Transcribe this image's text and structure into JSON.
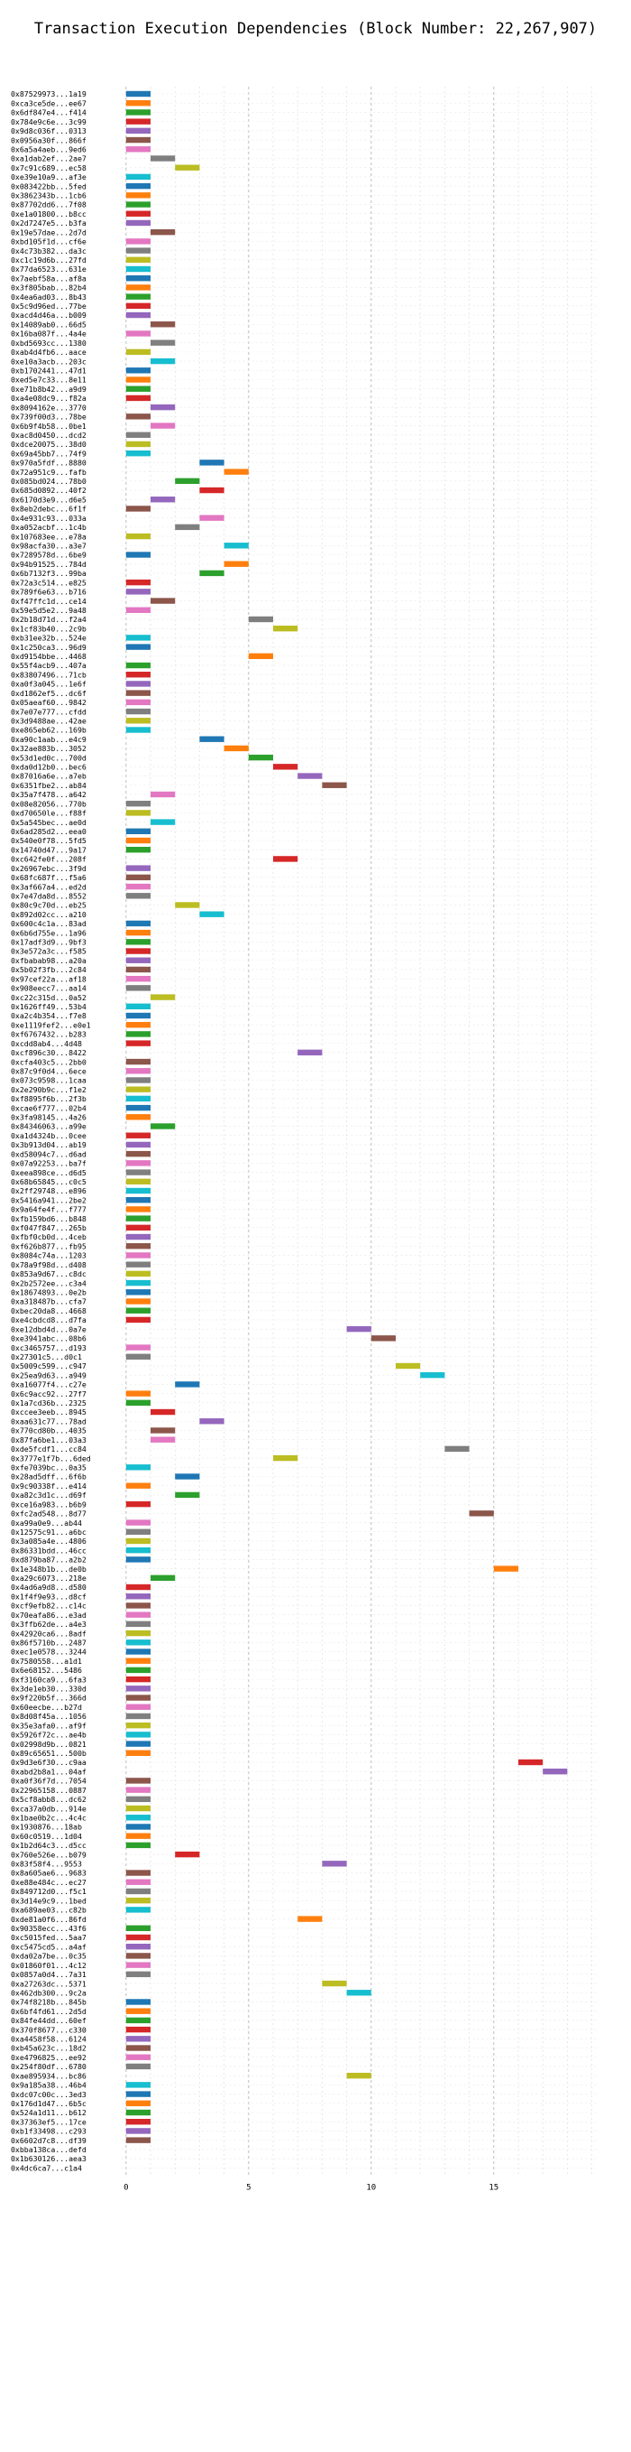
{
  "chart_data": {
    "type": "gantt",
    "title": "Transaction Execution Dependencies (Block Number: 22,267,907)",
    "xlabel": "",
    "ylabel": "",
    "xlim": [
      -4.7,
      19.2
    ],
    "xticks": [
      0,
      5,
      10,
      15
    ],
    "grid": true,
    "colors": [
      "#1f77b4",
      "#ff7f0e",
      "#2ca02c",
      "#d62728",
      "#9467bd",
      "#8c564b",
      "#e377c2",
      "#7f7f7f",
      "#bcbd22",
      "#17becf"
    ],
    "categories": [
      "0x87529973...1a19",
      "0xca3ce5de...ee67",
      "0x6df847e4...f414",
      "0x784e9c6e...3c99",
      "0x9d8c036f...0313",
      "0x0956a30f...866f",
      "0x6a5a4aeb...9ed6",
      "0xa1dab2ef...2ae7",
      "0x7c91c689...ec58",
      "0xe39e10a9...af3e",
      "0x083422bb...5fed",
      "0x3862343b...1cb6",
      "0x87702dd6...7f08",
      "0xe1a01800...b8cc",
      "0x2d7247e5...b3fa",
      "0x19e57dae...2d7d",
      "0xbd105f1d...cf6e",
      "0x4c73b382...da3c",
      "0xc1c19d6b...27fd",
      "0x77da6523...631e",
      "0x7aebf58a...af8a",
      "0x3f805bab...82b4",
      "0x4ea6ad03...8b43",
      "0x5c9d96ed...77be",
      "0xacd4d46a...b009",
      "0x14089ab0...66d5",
      "0x16ba087f...4a4e",
      "0xbd5693cc...1380",
      "0xab4d4fb6...aace",
      "0xe10a3acb...203c",
      "0xb1702441...47d1",
      "0xed5e7c33...8e11",
      "0xe71b8b42...a9d9",
      "0xa4e08dc9...f82a",
      "0x8094162e...3770",
      "0x739f00d3...78be",
      "0x6b9f4b58...0be1",
      "0xac8d0450...dcd2",
      "0xdce20075...38d0",
      "0x69a45bb7...74f9",
      "0x970a5fdf...8880",
      "0x72a951c9...fafb",
      "0x085bd024...78b0",
      "0x685d0892...40f2",
      "0x6170d3e9...d6e5",
      "0x8eb2debc...6f1f",
      "0x4e931c93...033a",
      "0xa052acbf...1c4b",
      "0x107683ee...e78a",
      "0x98acfa30...a3e7",
      "0x7289578d...6be9",
      "0x94b91525...784d",
      "0x6b7132f3...99ba",
      "0x72a3c514...e825",
      "0x789f6e63...b716",
      "0xf47ffc1d...ce14",
      "0x59e5d5e2...9a48",
      "0x2b18d71d...f2a4",
      "0x1cf83b40...2c9b",
      "0xb31ee32b...524e",
      "0x1c250ca3...96d9",
      "0xd9154bbe...4468",
      "0x55f4acb9...407a",
      "0x83807496...71cb",
      "0xa0f3a045...1e6f",
      "0xd1862ef5...dc6f",
      "0x05aeaf60...9842",
      "0x7e07e777...cfdd",
      "0x3d9488ae...42ae",
      "0xe865eb62...169b",
      "0xa90c1aab...e4c9",
      "0x32ae883b...3052",
      "0x53d1ed0c...700d",
      "0xda0d12b0...bec6",
      "0x87016a6e...a7eb",
      "0x6351fbe2...ab84",
      "0x35a7f478...a642",
      "0x08e82056...770b",
      "0xd70650le...f88f",
      "0x5a545bec...ae0d",
      "0x6ad285d2...eea0",
      "0x540e0f78...5fd5",
      "0x14740d47...9a17",
      "0xc642fe0f...208f",
      "0x26967ebc...3f9d",
      "0x68fc687f...f5a6",
      "0x3af667a4...ed2d",
      "0x7e47da8d...8552",
      "0x80c9c70d...eb25",
      "0x892d02cc...a210",
      "0x600c4c1a...83ad",
      "0x6b6d755e...1a96",
      "0x17adf3d9...9bf3",
      "0x3e572a3c...f585",
      "0xfbabab98...a20a",
      "0x5b02f3fb...2c84",
      "0x97cef22a...af18",
      "0x908eecc7...aa14",
      "0xc22c315d...0a52",
      "0x1626ff49...53b4",
      "0xa2c4b354...f7e8",
      "0xe1119fef2...e0e1",
      "0xf6767432...b283",
      "0xcdd8ab4...4d48",
      "0xcf896c30...8422",
      "0xcfa403c5...2bb0",
      "0x87c9f0d4...6ece",
      "0x073c9598...1caa",
      "0x2e290b9c...f1e2",
      "0xf8895f6b...2f3b",
      "0xcae6f777...02b4",
      "0x3fa98145...4a26",
      "0x84346063...a99e",
      "0xa1d4324b...0cee",
      "0x3b913d04...ab19",
      "0xd58094c7...d6ad",
      "0x07a92253...ba7f",
      "0xeea898ce...d6d5",
      "0x68b65845...c0c5",
      "0x2ff29748...e896",
      "0x5416a941...2be2",
      "0x9a64fe4f...f777",
      "0xfb159bd6...b848",
      "0xf047f847...265b",
      "0xfbf0cb0d...4ceb",
      "0xf626b877...fb95",
      "0x8084c74a...1203",
      "0x78a9f98d...d408",
      "0x853a9d67...c8dc",
      "0x2b2572ee...c3a4",
      "0x18674893...0e2b",
      "0xa318487b...cfa7",
      "0xbec20da8...4668",
      "0xe4cbdcd8...d7fa",
      "0xe12dbd4d...0a7e",
      "0xe3941abc...08b6",
      "0xc3465757...d193",
      "0x27301c5...d0c1",
      "0x5009c599...c947",
      "0x25ea9d63...a949",
      "0xa16077f4...c27e",
      "0x6c9acc92...27f7",
      "0x1a7cd36b...2325",
      "0xccee3eeb...8945",
      "0xaa631c77...78ad",
      "0x770cd80b...4035",
      "0x87fa6be1...03a3",
      "0xde5fcdf1...cc84",
      "0x3777e1f7b...6ded",
      "0xfe7039bc...0a35",
      "0x28ad5dff...6f6b",
      "0x9c90338f...e414",
      "0xa82c3d1c...d69f",
      "0xce16a983...b6b9",
      "0xfc2ad548...8d77",
      "0xa99a0e9...ab44",
      "0x12575c91...a6bc",
      "0x3a085a4e...4806",
      "0x86331bdd...46cc",
      "0xd879ba87...a2b2",
      "0x1e348b1b...de0b",
      "0xa29c6073...218e",
      "0x4ad6a9d8...d580",
      "0x1f4f9e93...d8cf",
      "0xcf9efb82...c14c",
      "0x70eafa86...e3ad",
      "0x3ffb62de...a4e3",
      "0x42920ca6...8adf",
      "0x86f5710b...2487",
      "0xec1e0578...3244",
      "0x7580558...a1d1",
      "0x6e68152...5486",
      "0xf3160ca9...6fa3",
      "0x3de1eb30...330d",
      "0x9f220b5f...366d",
      "0x60eecbe...b27d",
      "0x8d08f45a...1056",
      "0x35e3afa0...af9f",
      "0x5926f72c...ae4b",
      "0x02998d9b...0821",
      "0x89c65651...500b",
      "0x9d3e6f30...c9aa",
      "0xabd2b8a1...04af",
      "0xa0f36f7d...7054",
      "0x22965158...0887",
      "0x5cf8abb8...dc62",
      "0xca37a0db...914e",
      "0x1bae0b2c...4c4c",
      "0x1930876...18ab",
      "0x60c0519...1d04",
      "0x1b2d64c3...d5cc",
      "0x760e526e...b079",
      "0x83f58f4...9553",
      "0x8a605ae6...9683",
      "0xe88e484c...ec27",
      "0x849712d0...f5c1",
      "0x3d14e9c9...1bed",
      "0xa689ae03...c82b",
      "0xde81a0f6...86fd",
      "0x90358ecc...43f6",
      "0xc5015fed...5aa7",
      "0xc5475cd5...a4af",
      "0xda02a7be...0c35",
      "0x01860f01...4c12",
      "0x0857a0d4...7a31",
      "0xa27263dc...5371",
      "0x462db300...9c2a",
      "0x74f8218b...845b",
      "0x6bf4fd61...2d5d",
      "0x84fe44dd...60ef",
      "0x370f8677...c330",
      "0xa4458f58...6124",
      "0xb45a623c...18d2",
      "0xe4796825...ee92",
      "0x254f80df...6780",
      "0xae895934...bc86",
      "0x9a185a38...46b4",
      "0xdc07c00c...3ed3",
      "0x176d1d47...6b5c",
      "0x524a1d11...b612",
      "0x37363ef5...17ce",
      "0xb1f33498...c293",
      "0x6602d7c8...df39",
      "0xbba138ca...defd",
      "0x1b630126...aea3",
      "0x4dc6ca7...c1a4"
    ],
    "bars": [
      [
        0,
        1,
        0
      ],
      [
        0,
        1,
        1
      ],
      [
        0,
        1,
        2
      ],
      [
        0,
        1,
        3
      ],
      [
        0,
        1,
        4
      ],
      [
        0,
        1,
        5
      ],
      [
        0,
        1,
        6
      ],
      [
        1,
        1,
        7
      ],
      [
        2,
        1,
        8
      ],
      [
        0,
        1,
        9
      ],
      [
        0,
        1,
        0
      ],
      [
        0,
        1,
        1
      ],
      [
        0,
        1,
        2
      ],
      [
        0,
        1,
        3
      ],
      [
        0,
        1,
        4
      ],
      [
        1,
        1,
        5
      ],
      [
        0,
        1,
        6
      ],
      [
        0,
        1,
        7
      ],
      [
        0,
        1,
        8
      ],
      [
        0,
        1,
        9
      ],
      [
        0,
        1,
        0
      ],
      [
        0,
        1,
        1
      ],
      [
        0,
        1,
        2
      ],
      [
        0,
        1,
        3
      ],
      [
        0,
        1,
        4
      ],
      [
        1,
        1,
        5
      ],
      [
        0,
        1,
        6
      ],
      [
        1,
        1,
        7
      ],
      [
        0,
        1,
        8
      ],
      [
        1,
        1,
        9
      ],
      [
        0,
        1,
        0
      ],
      [
        0,
        1,
        1
      ],
      [
        0,
        1,
        2
      ],
      [
        0,
        1,
        3
      ],
      [
        1,
        1,
        4
      ],
      [
        0,
        1,
        5
      ],
      [
        1,
        1,
        6
      ],
      [
        0,
        1,
        7
      ],
      [
        0,
        1,
        8
      ],
      [
        0,
        1,
        9
      ],
      [
        3,
        1,
        0
      ],
      [
        4,
        1,
        1
      ],
      [
        2,
        1,
        2
      ],
      [
        3,
        1,
        3
      ],
      [
        1,
        1,
        4
      ],
      [
        0,
        1,
        5
      ],
      [
        3,
        1,
        6
      ],
      [
        2,
        1,
        7
      ],
      [
        0,
        1,
        8
      ],
      [
        4,
        1,
        9
      ],
      [
        0,
        1,
        0
      ],
      [
        4,
        1,
        1
      ],
      [
        3,
        1,
        2
      ],
      [
        0,
        1,
        3
      ],
      [
        0,
        1,
        4
      ],
      [
        1,
        1,
        5
      ],
      [
        0,
        1,
        6
      ],
      [
        5,
        1,
        7
      ],
      [
        6,
        1,
        8
      ],
      [
        0,
        1,
        9
      ],
      [
        0,
        1,
        0
      ],
      [
        5,
        1,
        1
      ],
      [
        0,
        1,
        2
      ],
      [
        0,
        1,
        3
      ],
      [
        0,
        1,
        4
      ],
      [
        0,
        1,
        5
      ],
      [
        0,
        1,
        6
      ],
      [
        0,
        1,
        7
      ],
      [
        0,
        1,
        8
      ],
      [
        0,
        1,
        9
      ],
      [
        3,
        1,
        0
      ],
      [
        4,
        1,
        1
      ],
      [
        5,
        1,
        2
      ],
      [
        6,
        1,
        3
      ],
      [
        7,
        1,
        4
      ],
      [
        8,
        1,
        5
      ],
      [
        1,
        1,
        6
      ],
      [
        0,
        1,
        7
      ],
      [
        0,
        1,
        8
      ],
      [
        1,
        1,
        9
      ],
      [
        0,
        1,
        0
      ],
      [
        0,
        1,
        1
      ],
      [
        0,
        1,
        2
      ],
      [
        6,
        1,
        3
      ],
      [
        0,
        1,
        4
      ],
      [
        0,
        1,
        5
      ],
      [
        0,
        1,
        6
      ],
      [
        0,
        1,
        7
      ],
      [
        2,
        1,
        8
      ],
      [
        3,
        1,
        9
      ],
      [
        0,
        1,
        0
      ],
      [
        0,
        1,
        1
      ],
      [
        0,
        1,
        2
      ],
      [
        0,
        1,
        3
      ],
      [
        0,
        1,
        4
      ],
      [
        0,
        1,
        5
      ],
      [
        0,
        1,
        6
      ],
      [
        0,
        1,
        7
      ],
      [
        1,
        1,
        8
      ],
      [
        0,
        1,
        9
      ],
      [
        0,
        1,
        0
      ],
      [
        0,
        1,
        1
      ],
      [
        0,
        1,
        2
      ],
      [
        0,
        1,
        3
      ],
      [
        7,
        1,
        4
      ],
      [
        0,
        1,
        5
      ],
      [
        0,
        1,
        6
      ],
      [
        0,
        1,
        7
      ],
      [
        0,
        1,
        8
      ],
      [
        0,
        1,
        9
      ],
      [
        0,
        1,
        0
      ],
      [
        0,
        1,
        1
      ],
      [
        1,
        1,
        2
      ],
      [
        0,
        1,
        3
      ],
      [
        0,
        1,
        4
      ],
      [
        0,
        1,
        5
      ],
      [
        0,
        1,
        6
      ],
      [
        0,
        1,
        7
      ],
      [
        0,
        1,
        8
      ],
      [
        0,
        1,
        9
      ],
      [
        0,
        1,
        0
      ],
      [
        0,
        1,
        1
      ],
      [
        0,
        1,
        2
      ],
      [
        0,
        1,
        3
      ],
      [
        0,
        1,
        4
      ],
      [
        0,
        1,
        5
      ],
      [
        0,
        1,
        6
      ],
      [
        0,
        1,
        7
      ],
      [
        0,
        1,
        8
      ],
      [
        0,
        1,
        9
      ],
      [
        0,
        1,
        0
      ],
      [
        0,
        1,
        1
      ],
      [
        0,
        1,
        2
      ],
      [
        0,
        1,
        3
      ],
      [
        9,
        1,
        4
      ],
      [
        10,
        1,
        5
      ],
      [
        0,
        1,
        6
      ],
      [
        0,
        1,
        7
      ],
      [
        11,
        1,
        8
      ],
      [
        12,
        1,
        9
      ],
      [
        2,
        1,
        0
      ],
      [
        0,
        1,
        1
      ],
      [
        0,
        1,
        2
      ],
      [
        1,
        1,
        3
      ],
      [
        3,
        1,
        4
      ],
      [
        1,
        1,
        5
      ],
      [
        1,
        1,
        6
      ],
      [
        13,
        1,
        7
      ],
      [
        6,
        1,
        8
      ],
      [
        0,
        1,
        9
      ],
      [
        2,
        1,
        0
      ],
      [
        0,
        1,
        1
      ],
      [
        2,
        1,
        2
      ],
      [
        0,
        1,
        3
      ],
      [
        14,
        1,
        5
      ],
      [
        0,
        1,
        6
      ],
      [
        0,
        1,
        7
      ],
      [
        0,
        1,
        8
      ],
      [
        0,
        1,
        9
      ],
      [
        0,
        1,
        0
      ],
      [
        15,
        1,
        1
      ],
      [
        1,
        1,
        2
      ],
      [
        0,
        1,
        3
      ],
      [
        0,
        1,
        4
      ],
      [
        0,
        1,
        5
      ],
      [
        0,
        1,
        6
      ],
      [
        0,
        1,
        7
      ],
      [
        0,
        1,
        8
      ],
      [
        0,
        1,
        9
      ],
      [
        0,
        1,
        0
      ],
      [
        0,
        1,
        1
      ],
      [
        0,
        1,
        2
      ],
      [
        0,
        1,
        3
      ],
      [
        0,
        1,
        4
      ],
      [
        0,
        1,
        5
      ],
      [
        0,
        1,
        6
      ],
      [
        0,
        1,
        7
      ],
      [
        0,
        1,
        8
      ],
      [
        0,
        1,
        9
      ],
      [
        0,
        1,
        0
      ],
      [
        0,
        1,
        1
      ],
      [
        16,
        1,
        3
      ],
      [
        17,
        1,
        4
      ],
      [
        0,
        1,
        5
      ],
      [
        0,
        1,
        6
      ],
      [
        0,
        1,
        7
      ],
      [
        0,
        1,
        8
      ],
      [
        0,
        1,
        9
      ],
      [
        0,
        1,
        0
      ],
      [
        0,
        1,
        1
      ],
      [
        0,
        1,
        2
      ],
      [
        2,
        1,
        3
      ],
      [
        8,
        1,
        4
      ],
      [
        0,
        1,
        5
      ],
      [
        0,
        1,
        6
      ],
      [
        0,
        1,
        7
      ],
      [
        0,
        1,
        8
      ],
      [
        0,
        1,
        9
      ],
      [
        7,
        1,
        1
      ],
      [
        0,
        1,
        2
      ],
      [
        0,
        1,
        3
      ],
      [
        0,
        1,
        4
      ],
      [
        0,
        1,
        5
      ],
      [
        0,
        1,
        6
      ],
      [
        0,
        1,
        7
      ],
      [
        8,
        1,
        8
      ],
      [
        9,
        1,
        9
      ],
      [
        0,
        1,
        0
      ],
      [
        0,
        1,
        1
      ],
      [
        0,
        1,
        2
      ],
      [
        0,
        1,
        3
      ],
      [
        0,
        1,
        4
      ],
      [
        0,
        1,
        5
      ],
      [
        0,
        1,
        6
      ],
      [
        0,
        1,
        7
      ],
      [
        9,
        1,
        8
      ],
      [
        0,
        1,
        9
      ],
      [
        0,
        1,
        0
      ],
      [
        0,
        1,
        1
      ],
      [
        0,
        1,
        2
      ],
      [
        0,
        1,
        3
      ],
      [
        0,
        1,
        4
      ],
      [
        0,
        1,
        5
      ]
    ]
  }
}
